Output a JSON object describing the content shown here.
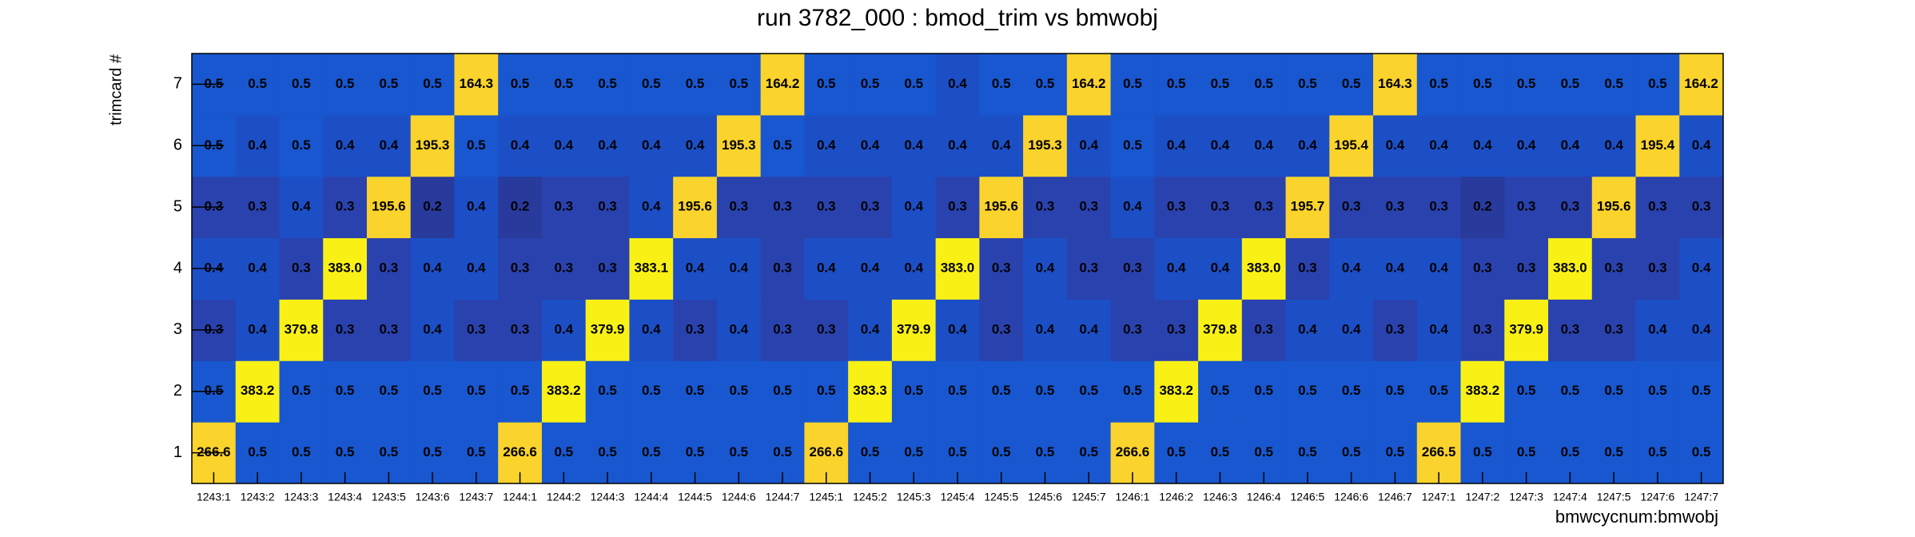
{
  "chart_data": {
    "type": "heatmap",
    "title": "run 3782_000 : bmod_trim vs bmwobj",
    "x_label": "bmwcycnum:bmwobj",
    "y_label": "trimcard #",
    "categories": [
      "1243:1",
      "1243:2",
      "1243:3",
      "1243:4",
      "1243:5",
      "1243:6",
      "1243:7",
      "1244:1",
      "1244:2",
      "1244:3",
      "1244:4",
      "1244:5",
      "1244:6",
      "1244:7",
      "1245:1",
      "1245:2",
      "1245:3",
      "1245:4",
      "1245:5",
      "1245:6",
      "1245:7",
      "1246:1",
      "1246:2",
      "1246:3",
      "1246:4",
      "1246:5",
      "1246:6",
      "1246:7",
      "1247:1",
      "1247:2",
      "1247:3",
      "1247:4",
      "1247:5",
      "1247:6",
      "1247:7"
    ],
    "y_categories": [
      1,
      2,
      3,
      4,
      5,
      6,
      7
    ],
    "values": [
      [
        266.6,
        0.5,
        0.5,
        0.5,
        0.5,
        0.5,
        0.5,
        266.6,
        0.5,
        0.5,
        0.5,
        0.5,
        0.5,
        0.5,
        266.6,
        0.5,
        0.5,
        0.5,
        0.5,
        0.5,
        0.5,
        266.6,
        0.5,
        0.5,
        0.5,
        0.5,
        0.5,
        0.5,
        266.5,
        0.5,
        0.5,
        0.5,
        0.5,
        0.5,
        0.5
      ],
      [
        0.5,
        383.2,
        0.5,
        0.5,
        0.5,
        0.5,
        0.5,
        0.5,
        383.2,
        0.5,
        0.5,
        0.5,
        0.5,
        0.5,
        0.5,
        383.3,
        0.5,
        0.5,
        0.5,
        0.5,
        0.5,
        0.5,
        383.2,
        0.5,
        0.5,
        0.5,
        0.5,
        0.5,
        0.5,
        383.2,
        0.5,
        0.5,
        0.5,
        0.5,
        0.5
      ],
      [
        0.3,
        0.4,
        379.8,
        0.3,
        0.3,
        0.4,
        0.3,
        0.3,
        0.4,
        379.9,
        0.4,
        0.3,
        0.4,
        0.3,
        0.3,
        0.4,
        379.9,
        0.4,
        0.3,
        0.4,
        0.4,
        0.3,
        0.3,
        379.8,
        0.3,
        0.4,
        0.4,
        0.3,
        0.4,
        0.3,
        379.9,
        0.3,
        0.3,
        0.4,
        0.4
      ],
      [
        0.4,
        0.4,
        0.3,
        383.0,
        0.3,
        0.4,
        0.4,
        0.3,
        0.3,
        0.3,
        383.1,
        0.4,
        0.4,
        0.3,
        0.4,
        0.4,
        0.4,
        383.0,
        0.3,
        0.4,
        0.3,
        0.3,
        0.4,
        0.4,
        383.0,
        0.3,
        0.4,
        0.4,
        0.4,
        0.3,
        0.3,
        383.0,
        0.3,
        0.3,
        0.4
      ],
      [
        0.3,
        0.3,
        0.4,
        0.3,
        195.6,
        0.2,
        0.4,
        0.2,
        0.3,
        0.3,
        0.4,
        195.6,
        0.3,
        0.3,
        0.3,
        0.3,
        0.4,
        0.3,
        195.6,
        0.3,
        0.3,
        0.4,
        0.3,
        0.3,
        0.3,
        195.7,
        0.3,
        0.3,
        0.3,
        0.2,
        0.3,
        0.3,
        195.6,
        0.3,
        0.3
      ],
      [
        0.5,
        0.4,
        0.5,
        0.4,
        0.4,
        195.3,
        0.5,
        0.4,
        0.4,
        0.4,
        0.4,
        0.4,
        195.3,
        0.5,
        0.4,
        0.4,
        0.4,
        0.4,
        0.4,
        195.3,
        0.4,
        0.5,
        0.4,
        0.4,
        0.4,
        0.4,
        195.4,
        0.4,
        0.4,
        0.4,
        0.4,
        0.4,
        0.4,
        195.4,
        0.4
      ],
      [
        0.5,
        0.5,
        0.5,
        0.5,
        0.5,
        0.5,
        164.3,
        0.5,
        0.5,
        0.5,
        0.5,
        0.5,
        0.5,
        164.2,
        0.5,
        0.5,
        0.5,
        0.4,
        0.5,
        0.5,
        164.2,
        0.5,
        0.5,
        0.5,
        0.5,
        0.5,
        0.5,
        164.3,
        0.5,
        0.5,
        0.5,
        0.5,
        0.5,
        0.5,
        164.2
      ]
    ],
    "value_labels": [
      [
        "266.6",
        "0.5",
        "0.5",
        "0.5",
        "0.5",
        "0.5",
        "0.5",
        "266.6",
        "0.5",
        "0.5",
        "0.5",
        "0.5",
        "0.5",
        "0.5",
        "266.6",
        "0.5",
        "0.5",
        "0.5",
        "0.5",
        "0.5",
        "0.5",
        "266.6",
        "0.5",
        "0.5",
        "0.5",
        "0.5",
        "0.5",
        "0.5",
        "266.5",
        "0.5",
        "0.5",
        "0.5",
        "0.5",
        "0.5",
        "0.5"
      ],
      [
        "0.5",
        "383.2",
        "0.5",
        "0.5",
        "0.5",
        "0.5",
        "0.5",
        "0.5",
        "383.2",
        "0.5",
        "0.5",
        "0.5",
        "0.5",
        "0.5",
        "0.5",
        "383.3",
        "0.5",
        "0.5",
        "0.5",
        "0.5",
        "0.5",
        "0.5",
        "383.2",
        "0.5",
        "0.5",
        "0.5",
        "0.5",
        "0.5",
        "0.5",
        "383.2",
        "0.5",
        "0.5",
        "0.5",
        "0.5",
        "0.5"
      ],
      [
        "0.3",
        "0.4",
        "379.8",
        "0.3",
        "0.3",
        "0.4",
        "0.3",
        "0.3",
        "0.4",
        "379.9",
        "0.4",
        "0.3",
        "0.4",
        "0.3",
        "0.3",
        "0.4",
        "379.9",
        "0.4",
        "0.3",
        "0.4",
        "0.4",
        "0.3",
        "0.3",
        "379.8",
        "0.3",
        "0.4",
        "0.4",
        "0.3",
        "0.4",
        "0.3",
        "379.9",
        "0.3",
        "0.3",
        "0.4",
        "0.4"
      ],
      [
        "0.4",
        "0.4",
        "0.3",
        "383.0",
        "0.3",
        "0.4",
        "0.4",
        "0.3",
        "0.3",
        "0.3",
        "383.1",
        "0.4",
        "0.4",
        "0.3",
        "0.4",
        "0.4",
        "0.4",
        "383.0",
        "0.3",
        "0.4",
        "0.3",
        "0.3",
        "0.4",
        "0.4",
        "383.0",
        "0.3",
        "0.4",
        "0.4",
        "0.4",
        "0.3",
        "0.3",
        "383.0",
        "0.3",
        "0.3",
        "0.4"
      ],
      [
        "0.3",
        "0.3",
        "0.4",
        "0.3",
        "195.6",
        "0.2",
        "0.4",
        "0.2",
        "0.3",
        "0.3",
        "0.4",
        "195.6",
        "0.3",
        "0.3",
        "0.3",
        "0.3",
        "0.4",
        "0.3",
        "195.6",
        "0.3",
        "0.3",
        "0.4",
        "0.3",
        "0.3",
        "0.3",
        "195.7",
        "0.3",
        "0.3",
        "0.3",
        "0.2",
        "0.3",
        "0.3",
        "195.6",
        "0.3",
        "0.3"
      ],
      [
        "0.5",
        "0.4",
        "0.5",
        "0.4",
        "0.4",
        "195.3",
        "0.5",
        "0.4",
        "0.4",
        "0.4",
        "0.4",
        "0.4",
        "195.3",
        "0.5",
        "0.4",
        "0.4",
        "0.4",
        "0.4",
        "0.4",
        "195.3",
        "0.4",
        "0.5",
        "0.4",
        "0.4",
        "0.4",
        "0.4",
        "195.4",
        "0.4",
        "0.4",
        "0.4",
        "0.4",
        "0.4",
        "0.4",
        "195.4",
        "0.4"
      ],
      [
        "0.5",
        "0.5",
        "0.5",
        "0.5",
        "0.5",
        "0.5",
        "164.3",
        "0.5",
        "0.5",
        "0.5",
        "0.5",
        "0.5",
        "0.5",
        "164.2",
        "0.5",
        "0.5",
        "0.5",
        "0.4",
        "0.5",
        "0.5",
        "164.2",
        "0.5",
        "0.5",
        "0.5",
        "0.5",
        "0.5",
        "0.5",
        "164.3",
        "0.5",
        "0.5",
        "0.5",
        "0.5",
        "0.5",
        "0.5",
        "164.2"
      ]
    ]
  }
}
